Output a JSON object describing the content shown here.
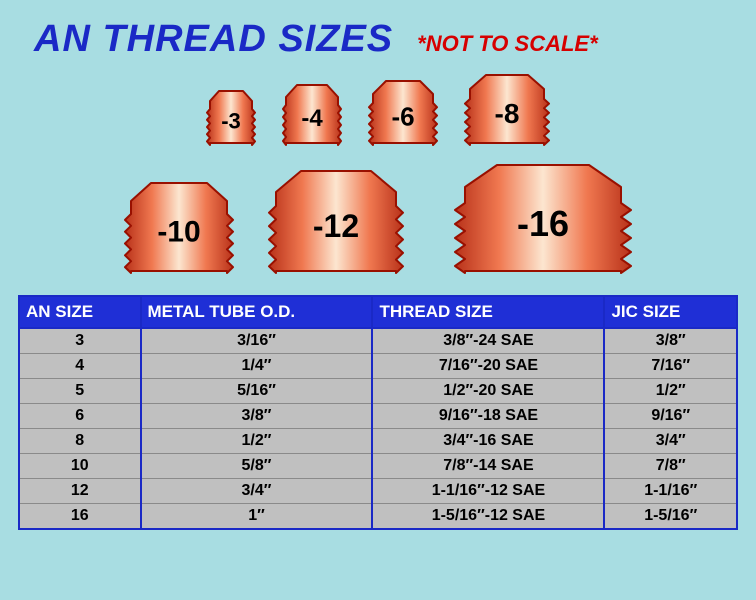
{
  "title": "AN THREAD SIZES",
  "subtitle": "*NOT TO SCALE*",
  "colors": {
    "background": "#a8dde2",
    "title": "#1a29c6",
    "subtitle": "#d60000",
    "header_bg": "#1f2fd6",
    "header_text": "#ffffff",
    "cell_bg": "#c0c0c0",
    "border": "#1a29c6",
    "fitting_light": "#fce6d0",
    "fitting_mid": "#f07850",
    "fitting_dark": "#b8321a",
    "fitting_outline": "#991000"
  },
  "fittings_row1": [
    {
      "label": "-3",
      "w": 46,
      "h": 56,
      "font": 22,
      "gap": 20
    },
    {
      "label": "-4",
      "w": 56,
      "h": 62,
      "font": 24,
      "gap": 20
    },
    {
      "label": "-6",
      "w": 64,
      "h": 66,
      "font": 26,
      "gap": 20
    },
    {
      "label": "-8",
      "w": 78,
      "h": 72,
      "font": 28,
      "gap": 0
    }
  ],
  "fittings_row2": [
    {
      "label": "-10",
      "w": 100,
      "h": 92,
      "font": 30,
      "gap": 28
    },
    {
      "label": "-12",
      "w": 124,
      "h": 104,
      "font": 32,
      "gap": 44
    },
    {
      "label": "-16",
      "w": 160,
      "h": 110,
      "font": 36,
      "gap": 0
    }
  ],
  "table": {
    "columns": [
      "AN SIZE",
      "METAL TUBE O.D.",
      "THREAD SIZE",
      "JIC SIZE"
    ],
    "col_classes": [
      "col-an",
      "col-od",
      "col-th",
      "col-jic"
    ],
    "rows": [
      [
        "3",
        "3/16″",
        "3/8″-24 SAE",
        "3/8″"
      ],
      [
        "4",
        "1/4″",
        "7/16″-20 SAE",
        "7/16″"
      ],
      [
        "5",
        "5/16″",
        "1/2″-20 SAE",
        "1/2″"
      ],
      [
        "6",
        "3/8″",
        "9/16″-18 SAE",
        "9/16″"
      ],
      [
        "8",
        "1/2″",
        "3/4″-16 SAE",
        "3/4″"
      ],
      [
        "10",
        "5/8″",
        "7/8″-14 SAE",
        "7/8″"
      ],
      [
        "12",
        "3/4″",
        "1-1/16″-12 SAE",
        "1-1/16″"
      ],
      [
        "16",
        "1″",
        "1-5/16″-12 SAE",
        "1-5/16″"
      ]
    ]
  }
}
